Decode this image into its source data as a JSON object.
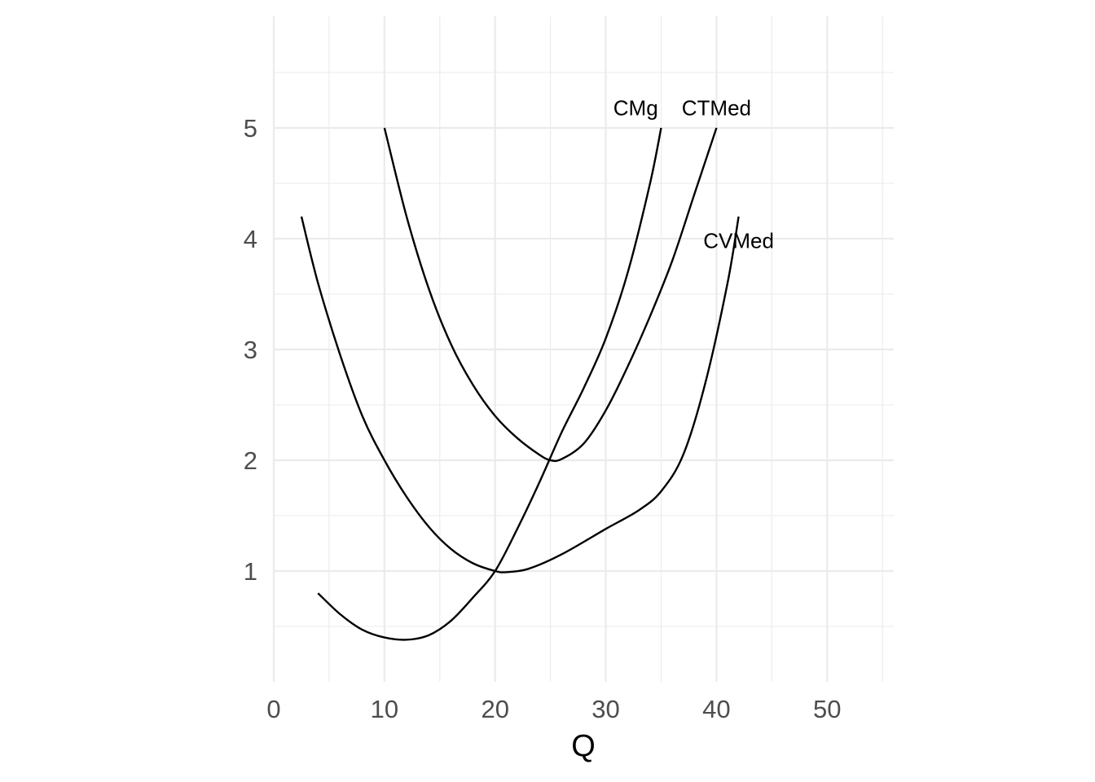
{
  "chart_data": {
    "type": "line",
    "title": "",
    "xlabel": "Q",
    "ylabel": "",
    "xlim": [
      0,
      55
    ],
    "ylim": [
      0,
      5
    ],
    "x_ticks": [
      0,
      10,
      20,
      30,
      40,
      50
    ],
    "y_ticks": [
      1,
      2,
      3,
      4,
      5
    ],
    "grid": true,
    "legend": "none",
    "colors": {
      "line": "#000000",
      "grid": "#ebebeb",
      "tick_text": "#4d4d4d"
    },
    "series": [
      {
        "name": "CMg",
        "x": [
          4,
          6,
          8,
          10,
          12,
          14,
          16,
          18,
          20,
          22,
          24,
          26,
          28,
          30,
          32,
          34,
          35
        ],
        "y": [
          0.8,
          0.61,
          0.47,
          0.4,
          0.38,
          0.42,
          0.55,
          0.76,
          1.0,
          1.38,
          1.8,
          2.25,
          2.65,
          3.1,
          3.7,
          4.5,
          5.0
        ]
      },
      {
        "name": "CTMed",
        "x": [
          10,
          12,
          14,
          16,
          18,
          20,
          22,
          24,
          25,
          26,
          28,
          30,
          32,
          34,
          36,
          38,
          40
        ],
        "y": [
          5.0,
          4.2,
          3.55,
          3.05,
          2.68,
          2.4,
          2.2,
          2.05,
          2.0,
          2.01,
          2.15,
          2.45,
          2.85,
          3.3,
          3.8,
          4.4,
          5.0
        ]
      },
      {
        "name": "CVMed",
        "x": [
          2.5,
          4,
          6,
          8,
          10,
          12,
          14,
          16,
          18,
          20,
          21,
          23,
          26,
          30,
          33,
          35,
          37,
          39,
          41,
          42
        ],
        "y": [
          4.2,
          3.6,
          2.95,
          2.4,
          2.0,
          1.67,
          1.4,
          1.2,
          1.07,
          1.0,
          0.99,
          1.02,
          1.15,
          1.38,
          1.55,
          1.72,
          2.05,
          2.7,
          3.6,
          4.2
        ]
      }
    ],
    "annotations": [
      {
        "text": "CMg",
        "x": 32.7,
        "y": 5.18
      },
      {
        "text": "CTMed",
        "x": 40.0,
        "y": 5.18
      },
      {
        "text": "CVMed",
        "x": 42.0,
        "y": 3.98
      }
    ]
  }
}
